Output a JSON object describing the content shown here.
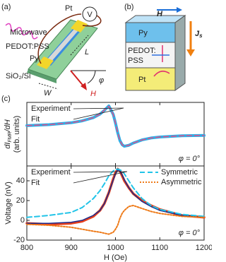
{
  "panel_a": {
    "label": "(a)",
    "microwave": "Microwave",
    "pedot": "PEDOT:PSS",
    "py": "Py",
    "substrate": "SiO₂/Si",
    "pt": "Pt",
    "voltmeter": "V",
    "length": "L",
    "width": "W",
    "field": "H",
    "angle": "φ"
  },
  "panel_b": {
    "label": "(b)",
    "field": "H",
    "py": "Py",
    "pedot": [
      "PEDOT:",
      "PSS"
    ],
    "pt": "Pt",
    "current": "J",
    "current_sub": "s"
  },
  "panel_c_label": "(c)",
  "chart_data": [
    {
      "type": "line",
      "ylabel": [
        "dI",
        "FMR",
        "/dH"
      ],
      "ylabel_unit": "(arb. units)",
      "annotation": "φ = 0°",
      "x": [
        800,
        850,
        900,
        925,
        950,
        965,
        975,
        985,
        995,
        1000,
        1005,
        1010,
        1015,
        1020,
        1030,
        1040,
        1060,
        1080,
        1100,
        1150,
        1200
      ],
      "series": [
        {
          "name": "Experiment",
          "color": "#2eaee6",
          "style": "solid",
          "width": 4,
          "values": [
            0.27,
            0.3,
            0.36,
            0.42,
            0.52,
            0.63,
            0.75,
            0.89,
            0.62,
            0.35,
            0.05,
            -0.2,
            -0.33,
            -0.38,
            -0.35,
            -0.28,
            -0.18,
            -0.12,
            -0.09,
            -0.05,
            -0.04
          ]
        },
        {
          "name": "Fit",
          "color": "#e0508a",
          "style": "dashed",
          "width": 1.5,
          "values": [
            0.27,
            0.3,
            0.36,
            0.42,
            0.52,
            0.63,
            0.76,
            0.88,
            0.62,
            0.35,
            0.05,
            -0.2,
            -0.33,
            -0.38,
            -0.35,
            -0.28,
            -0.18,
            -0.12,
            -0.09,
            -0.05,
            -0.04
          ]
        }
      ],
      "xlim": [
        800,
        1200
      ],
      "ylim": [
        -1,
        1
      ],
      "xticks": [
        800,
        900,
        1000,
        1100,
        1200
      ]
    },
    {
      "type": "line",
      "ylabel": "Voltage (nV)",
      "xlabel": "H (Oe)",
      "annotation": "φ = 0°",
      "x": [
        800,
        850,
        900,
        925,
        950,
        965,
        975,
        985,
        995,
        1000,
        1005,
        1010,
        1015,
        1020,
        1030,
        1040,
        1060,
        1080,
        1100,
        1150,
        1200
      ],
      "series": [
        {
          "name": "Experiment",
          "color": "#e8401c",
          "style": "solid",
          "width": 3.5,
          "values": [
            -3,
            -4,
            -3,
            -1,
            4,
            10,
            17,
            28,
            42,
            48,
            52,
            50,
            45,
            40,
            33,
            27,
            20,
            15,
            11,
            5,
            3
          ]
        },
        {
          "name": "Fit",
          "color": "#1a2a8c",
          "style": "solid",
          "width": 1.5,
          "values": [
            -3,
            -3,
            -2,
            0,
            5,
            10,
            17,
            28,
            41,
            47,
            51,
            50,
            46,
            41,
            33,
            27,
            19,
            14,
            10,
            5,
            3
          ]
        },
        {
          "name": "Symmetric",
          "color": "#22c4e8",
          "style": "dashed",
          "width": 2,
          "values": [
            3,
            5,
            8,
            13,
            22,
            30,
            37,
            45,
            50,
            51,
            52,
            51,
            50,
            47,
            40,
            33,
            22,
            15,
            11,
            6,
            4
          ]
        },
        {
          "name": "Asymmetric",
          "color": "#ee7a18",
          "style": "dotted",
          "width": 2,
          "values": [
            -4,
            -5,
            -7,
            -9,
            -11,
            -12,
            -13,
            -14,
            -12,
            -9,
            -5,
            2,
            7,
            10,
            14,
            15,
            12,
            9,
            7,
            4,
            3
          ]
        }
      ],
      "xlim": [
        800,
        1200
      ],
      "ylim": [
        -20,
        55
      ],
      "xticks": [
        800,
        900,
        1000,
        1100,
        1200
      ],
      "yticks": [
        -20,
        0,
        20,
        40
      ]
    }
  ]
}
